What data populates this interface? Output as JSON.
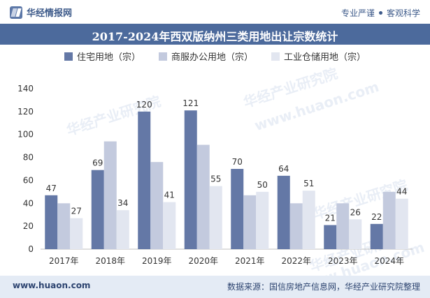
{
  "header": {
    "brand": "华经情报网",
    "tagline_left": "专业严谨",
    "tagline_right": "客观科学"
  },
  "footer": {
    "website": "www.huaon.com",
    "source": "数据来源：国信房地产信息网，华经产业研究院整理"
  },
  "watermarks": [
    "华经产业研究院",
    "www.huaon.com"
  ],
  "colors": {
    "title_bar": "#4c6a9c",
    "series": [
      "#6478a6",
      "#c3cade",
      "#e2e6f0"
    ]
  },
  "chart_data": {
    "type": "bar",
    "title": "2017-2024年西双版纳州三类用地出让宗数统计",
    "categories": [
      "2017年",
      "2018年",
      "2019年",
      "2020年",
      "2021年",
      "2022年",
      "2023年",
      "2024年"
    ],
    "series": [
      {
        "name": "住宅用地（宗）",
        "values": [
          47,
          69,
          120,
          121,
          70,
          64,
          21,
          22
        ],
        "labels_shown": true
      },
      {
        "name": "商服办公用地（宗）",
        "values": [
          40,
          94,
          76,
          91,
          47,
          40,
          40,
          50
        ],
        "labels_shown": false
      },
      {
        "name": "工业仓储用地（宗）",
        "values": [
          27,
          34,
          41,
          55,
          50,
          51,
          26,
          44
        ],
        "labels_shown": true
      }
    ],
    "yticks": [
      "0",
      "20",
      "40",
      "60",
      "80",
      "100",
      "120",
      "140"
    ],
    "ylim": [
      0,
      140
    ],
    "grid": false,
    "legend": "top-center"
  }
}
